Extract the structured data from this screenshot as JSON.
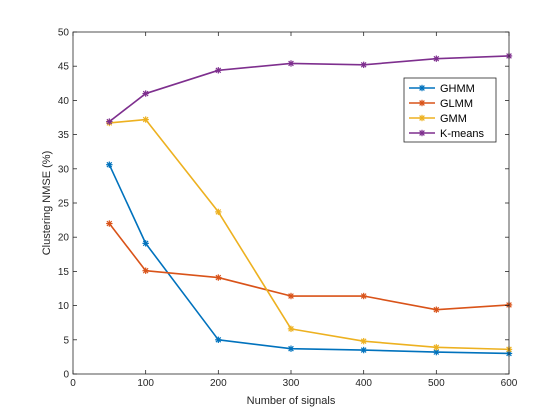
{
  "chart_data": {
    "type": "line",
    "title": "",
    "xlabel": "Number of signals",
    "ylabel": "Clustering NMSE (%)",
    "xlim": [
      0,
      600
    ],
    "ylim": [
      0,
      50
    ],
    "x": [
      50,
      100,
      200,
      300,
      400,
      500,
      600
    ],
    "xticks": [
      0,
      100,
      200,
      300,
      400,
      500,
      600
    ],
    "yticks": [
      0,
      5,
      10,
      15,
      20,
      25,
      30,
      35,
      40,
      45,
      50
    ],
    "grid": false,
    "legend_position": "top-right",
    "series": [
      {
        "name": "GHMM",
        "color": "#0072BD",
        "values": [
          30.6,
          19.1,
          5.0,
          3.7,
          3.5,
          3.2,
          3.0
        ]
      },
      {
        "name": "GLMM",
        "color": "#D95319",
        "values": [
          22.0,
          15.1,
          14.1,
          11.4,
          11.4,
          9.4,
          10.1
        ]
      },
      {
        "name": "GMM",
        "color": "#EDB120",
        "values": [
          36.7,
          37.2,
          23.7,
          6.6,
          4.8,
          3.9,
          3.6
        ]
      },
      {
        "name": "K-means",
        "color": "#7E2F8E",
        "values": [
          36.9,
          41.0,
          44.4,
          45.4,
          45.2,
          46.1,
          46.5
        ]
      }
    ]
  }
}
